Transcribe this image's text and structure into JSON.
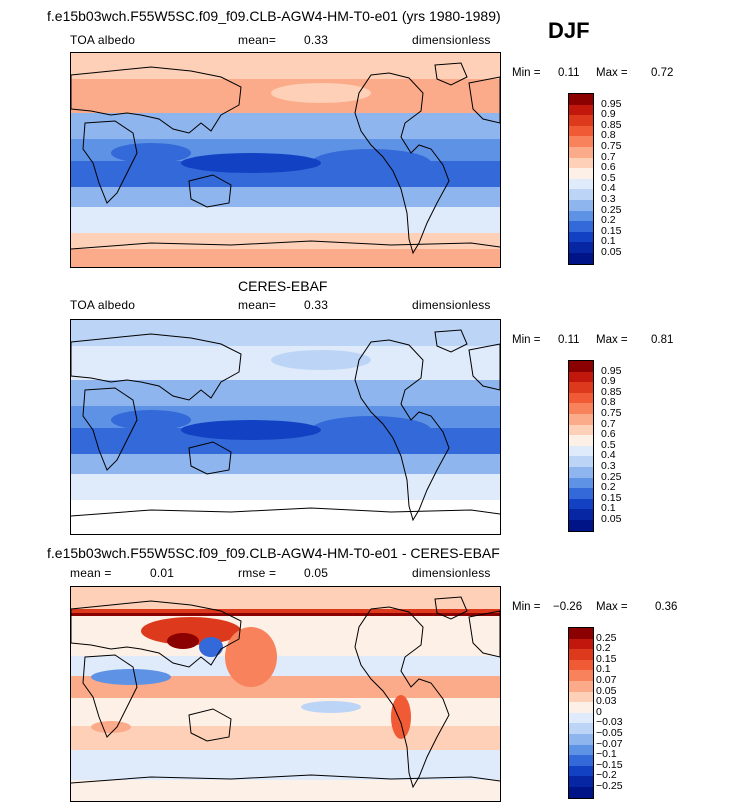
{
  "header": {
    "title": "f.e15b03wch.F55W5SC.f09_f09.CLB-AGW4-HM-T0-e01 (yrs 1980-1989)",
    "season": "DJF"
  },
  "panels": [
    {
      "heading": "",
      "left": "TOA albedo",
      "mid_label": "mean=",
      "mid_value": "0.33",
      "right": "dimensionless",
      "min_label": "Min =",
      "min_value": "0.11",
      "max_label": "Max =",
      "max_value": "0.72"
    },
    {
      "heading": "CERES-EBAF",
      "left": "TOA albedo",
      "mid_label": "mean=",
      "mid_value": "0.33",
      "right": "dimensionless",
      "min_label": "Min =",
      "min_value": "0.11",
      "max_label": "Max =",
      "max_value": "0.81"
    },
    {
      "heading": "f.e15b03wch.F55W5SC.f09_f09.CLB-AGW4-HM-T0-e01 - CERES-EBAF",
      "left": "mean =",
      "left_value": "0.01",
      "mid_label": "rmse =",
      "mid_value": "0.05",
      "right": "dimensionless",
      "min_label": "Min =",
      "min_value": "−0.26",
      "max_label": "Max =",
      "max_value": "0.36"
    }
  ],
  "chart_data": [
    {
      "type": "heatmap",
      "subplot": "model",
      "field": "TOA albedo",
      "units": "dimensionless",
      "mean": 0.33,
      "min": 0.11,
      "max": 0.72,
      "colorbar_labels": [
        "0.95",
        "0.9",
        "0.85",
        "0.8",
        "0.75",
        "0.7",
        "0.6",
        "0.5",
        "0.4",
        "0.3",
        "0.25",
        "0.2",
        "0.15",
        "0.1",
        "0.05"
      ],
      "colorbar_colors": [
        "#8b0000",
        "#c1170c",
        "#dd3a1d",
        "#f05b35",
        "#f8825c",
        "#fbab8a",
        "#fdd0b7",
        "#fdf0e6",
        "#dfeafb",
        "#bcd4f6",
        "#8fb5ee",
        "#5e92e4",
        "#3369d8",
        "#1241c4",
        "#0626a4",
        "#001487"
      ]
    },
    {
      "type": "heatmap",
      "subplot": "observations",
      "field": "TOA albedo",
      "units": "dimensionless",
      "mean": 0.33,
      "min": 0.11,
      "max": 0.81,
      "colorbar_labels": [
        "0.95",
        "0.9",
        "0.85",
        "0.8",
        "0.75",
        "0.7",
        "0.6",
        "0.5",
        "0.4",
        "0.3",
        "0.25",
        "0.2",
        "0.15",
        "0.1",
        "0.05"
      ],
      "colorbar_colors": [
        "#8b0000",
        "#c1170c",
        "#dd3a1d",
        "#f05b35",
        "#f8825c",
        "#fbab8a",
        "#fdd0b7",
        "#fdf0e6",
        "#dfeafb",
        "#bcd4f6",
        "#8fb5ee",
        "#5e92e4",
        "#3369d8",
        "#1241c4",
        "#0626a4",
        "#001487"
      ]
    },
    {
      "type": "heatmap",
      "subplot": "difference",
      "field": "TOA albedo",
      "units": "dimensionless",
      "mean": 0.01,
      "rmse": 0.05,
      "min": -0.26,
      "max": 0.36,
      "colorbar_labels": [
        "0.25",
        "0.2",
        "0.15",
        "0.1",
        "0.07",
        "0.05",
        "0.03",
        "0",
        "−0.03",
        "−0.05",
        "−0.07",
        "−0.1",
        "−0.15",
        "−0.2",
        "−0.25"
      ],
      "colorbar_colors": [
        "#8b0000",
        "#c1170c",
        "#dd3a1d",
        "#f05b35",
        "#f8825c",
        "#fbab8a",
        "#fdd0b7",
        "#fdf0e6",
        "#dfeafb",
        "#bcd4f6",
        "#8fb5ee",
        "#5e92e4",
        "#3369d8",
        "#1241c4",
        "#0626a4",
        "#001487"
      ]
    }
  ]
}
